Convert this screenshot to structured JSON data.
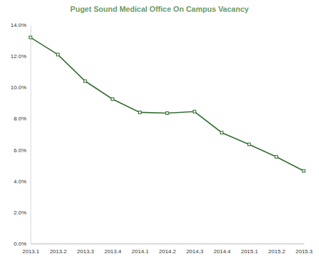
{
  "chart_data": {
    "type": "line",
    "title": "Puget Sound Medical Office On Campus Vacancy",
    "categories": [
      "2013.1",
      "2013.2",
      "2013.3",
      "2013.4",
      "2014.1",
      "2014.2",
      "2014.3",
      "2014.4",
      "2015.1",
      "2015.2",
      "2015.3"
    ],
    "values": [
      13.2,
      12.1,
      10.4,
      9.25,
      8.4,
      8.35,
      8.45,
      7.1,
      6.35,
      5.55,
      4.65
    ],
    "color": "#2f6b2f",
    "marker": "square",
    "line_style": "solid",
    "ylim": [
      0,
      14
    ],
    "yticks": [
      {
        "value": 0,
        "label": "0.0%"
      },
      {
        "value": 2,
        "label": "2.0%"
      },
      {
        "value": 4,
        "label": "4.0%"
      },
      {
        "value": 6,
        "label": "6.0%"
      },
      {
        "value": 8,
        "label": "8.0%"
      },
      {
        "value": 10,
        "label": "10.0%"
      },
      {
        "value": 12,
        "label": "12.0%"
      },
      {
        "value": 14,
        "label": "14.0%"
      }
    ],
    "grid": false
  }
}
